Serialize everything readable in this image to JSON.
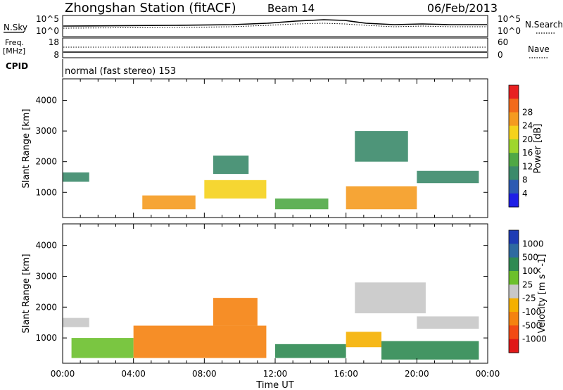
{
  "header": {
    "title": "Zhongshan Station (fitACF)",
    "beam": "Beam 14",
    "date": "06/Feb/2013"
  },
  "top_panels": {
    "noise": {
      "left_label": "N.Sky",
      "right_label": "N.Search",
      "ticks_left": [
        "10^5",
        "10^0"
      ],
      "ticks_right": [
        "10^5",
        "10^0"
      ]
    },
    "freq": {
      "left_label_line1": "Freq.",
      "left_label_line2": "[MHz]",
      "right_label": "Nave",
      "ticks_left": [
        "18",
        "8"
      ],
      "ticks_right": [
        "60",
        "0"
      ]
    },
    "cpid": {
      "label": "CPID",
      "mode_text": "normal (fast stereo) 153"
    }
  },
  "chart_data": [
    {
      "type": "heatmap",
      "panel": "power",
      "ylabel": "Slant Range [km]",
      "yticks": [
        "1000",
        "2000",
        "3000",
        "4000"
      ],
      "ylim": [
        180,
        4700
      ],
      "colorbar": {
        "label": "Power [dB]",
        "ticks": [
          "4",
          "8",
          "12",
          "16",
          "20",
          "24",
          "28"
        ],
        "colors": [
          "#1e1ee6",
          "#2c5ab2",
          "#3b8a6a",
          "#4fa845",
          "#9ed62c",
          "#f5d21c",
          "#f59b20",
          "#f26a1a",
          "#e82020"
        ]
      },
      "regions": [
        {
          "x": [
            0.0,
            1.5
          ],
          "y": [
            1350,
            1650
          ],
          "value": 9
        },
        {
          "x": [
            4.5,
            7.5
          ],
          "y": [
            450,
            900
          ],
          "value": 26
        },
        {
          "x": [
            8.0,
            11.5
          ],
          "y": [
            800,
            1400
          ],
          "value": 22
        },
        {
          "x": [
            8.5,
            10.5
          ],
          "y": [
            1600,
            2200
          ],
          "value": 11
        },
        {
          "x": [
            12.0,
            15.0
          ],
          "y": [
            450,
            800
          ],
          "value": 12
        },
        {
          "x": [
            16.0,
            20.0
          ],
          "y": [
            450,
            1200
          ],
          "value": 27
        },
        {
          "x": [
            16.5,
            19.5
          ],
          "y": [
            2000,
            3000
          ],
          "value": 8
        },
        {
          "x": [
            20.0,
            23.5
          ],
          "y": [
            1300,
            1700
          ],
          "value": 9
        }
      ]
    },
    {
      "type": "heatmap",
      "panel": "velocity",
      "xlabel": "Time UT",
      "ylabel": "Slant Range [km]",
      "xticks": [
        "00:00",
        "04:00",
        "08:00",
        "12:00",
        "16:00",
        "20:00",
        "00:00"
      ],
      "xlim": [
        0,
        24
      ],
      "yticks": [
        "1000",
        "2000",
        "3000",
        "4000"
      ],
      "ylim": [
        180,
        4700
      ],
      "colorbar": {
        "label": "Velocity [m s^-1]",
        "ticks": [
          "1000",
          "500",
          "100",
          "25",
          "-25",
          "-100",
          "-500",
          "-1000"
        ],
        "colors": [
          "#1e3cb4",
          "#2e6aa0",
          "#2f8a52",
          "#6cc02c",
          "#c8c8c8",
          "#f5b000",
          "#f5820f",
          "#f24a14",
          "#e01818"
        ]
      },
      "regions": [
        {
          "x": [
            0.0,
            1.5
          ],
          "y": [
            1350,
            1650
          ],
          "value": 0
        },
        {
          "x": [
            0.5,
            4.0
          ],
          "y": [
            350,
            1000
          ],
          "value": 80
        },
        {
          "x": [
            4.0,
            11.5
          ],
          "y": [
            350,
            1400
          ],
          "value": -200
        },
        {
          "x": [
            8.5,
            11.0
          ],
          "y": [
            1400,
            2300
          ],
          "value": -300
        },
        {
          "x": [
            12.0,
            16.0
          ],
          "y": [
            350,
            800
          ],
          "value": 120
        },
        {
          "x": [
            16.0,
            18.0
          ],
          "y": [
            700,
            1200
          ],
          "value": -60
        },
        {
          "x": [
            16.5,
            20.5
          ],
          "y": [
            1800,
            2800
          ],
          "value": 0
        },
        {
          "x": [
            18.0,
            23.5
          ],
          "y": [
            300,
            900
          ],
          "value": 150
        },
        {
          "x": [
            20.0,
            23.5
          ],
          "y": [
            1300,
            1700
          ],
          "value": 0
        }
      ]
    }
  ]
}
